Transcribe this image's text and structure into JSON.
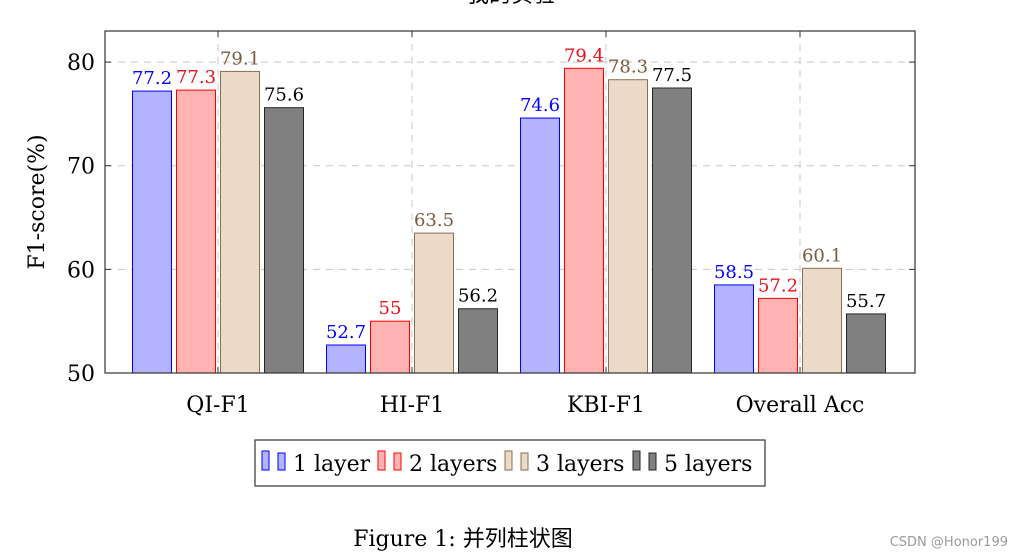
{
  "chart_data": {
    "type": "bar",
    "title": "我的实验",
    "ylabel": "F1-score(%)",
    "xlabel": "",
    "ylim": [
      50,
      83
    ],
    "yticks": [
      50,
      60,
      70,
      80
    ],
    "grid": true,
    "legend_position": "bottom",
    "categories": [
      "QI-F1",
      "HI-F1",
      "KBI-F1",
      "Overall Acc"
    ],
    "series": [
      {
        "name": "1 layer",
        "values": [
          77.2,
          52.7,
          74.6,
          58.5
        ],
        "fill": "#b3b3ff",
        "stroke": "#0000ff",
        "label_color": "#0000ff",
        "labels": [
          "77.2",
          "52.7",
          "74.6",
          "58.5"
        ]
      },
      {
        "name": "2 layers",
        "values": [
          77.3,
          55,
          79.4,
          57.2
        ],
        "fill": "#ffb3b3",
        "stroke": "#ff0000",
        "label_color": "#e8101c",
        "labels": [
          "77.3",
          "55",
          "79.4",
          "57.2"
        ]
      },
      {
        "name": "3 layers",
        "values": [
          79.1,
          63.5,
          78.3,
          60.1
        ],
        "fill": "#ebdac7",
        "stroke": "#8c6e51",
        "label_color": "#7b5a3d",
        "labels": [
          "79.1",
          "63.5",
          "78.3",
          "60.1"
        ]
      },
      {
        "name": "5 layers",
        "values": [
          75.6,
          56.2,
          77.5,
          55.7
        ],
        "fill": "#808080",
        "stroke": "#262626",
        "label_color": "#000000",
        "labels": [
          "75.6",
          "56.2",
          "77.5",
          "55.7"
        ]
      }
    ]
  },
  "caption": "Figure 1: 并列柱状图",
  "watermark": "CSDN @Honor199"
}
